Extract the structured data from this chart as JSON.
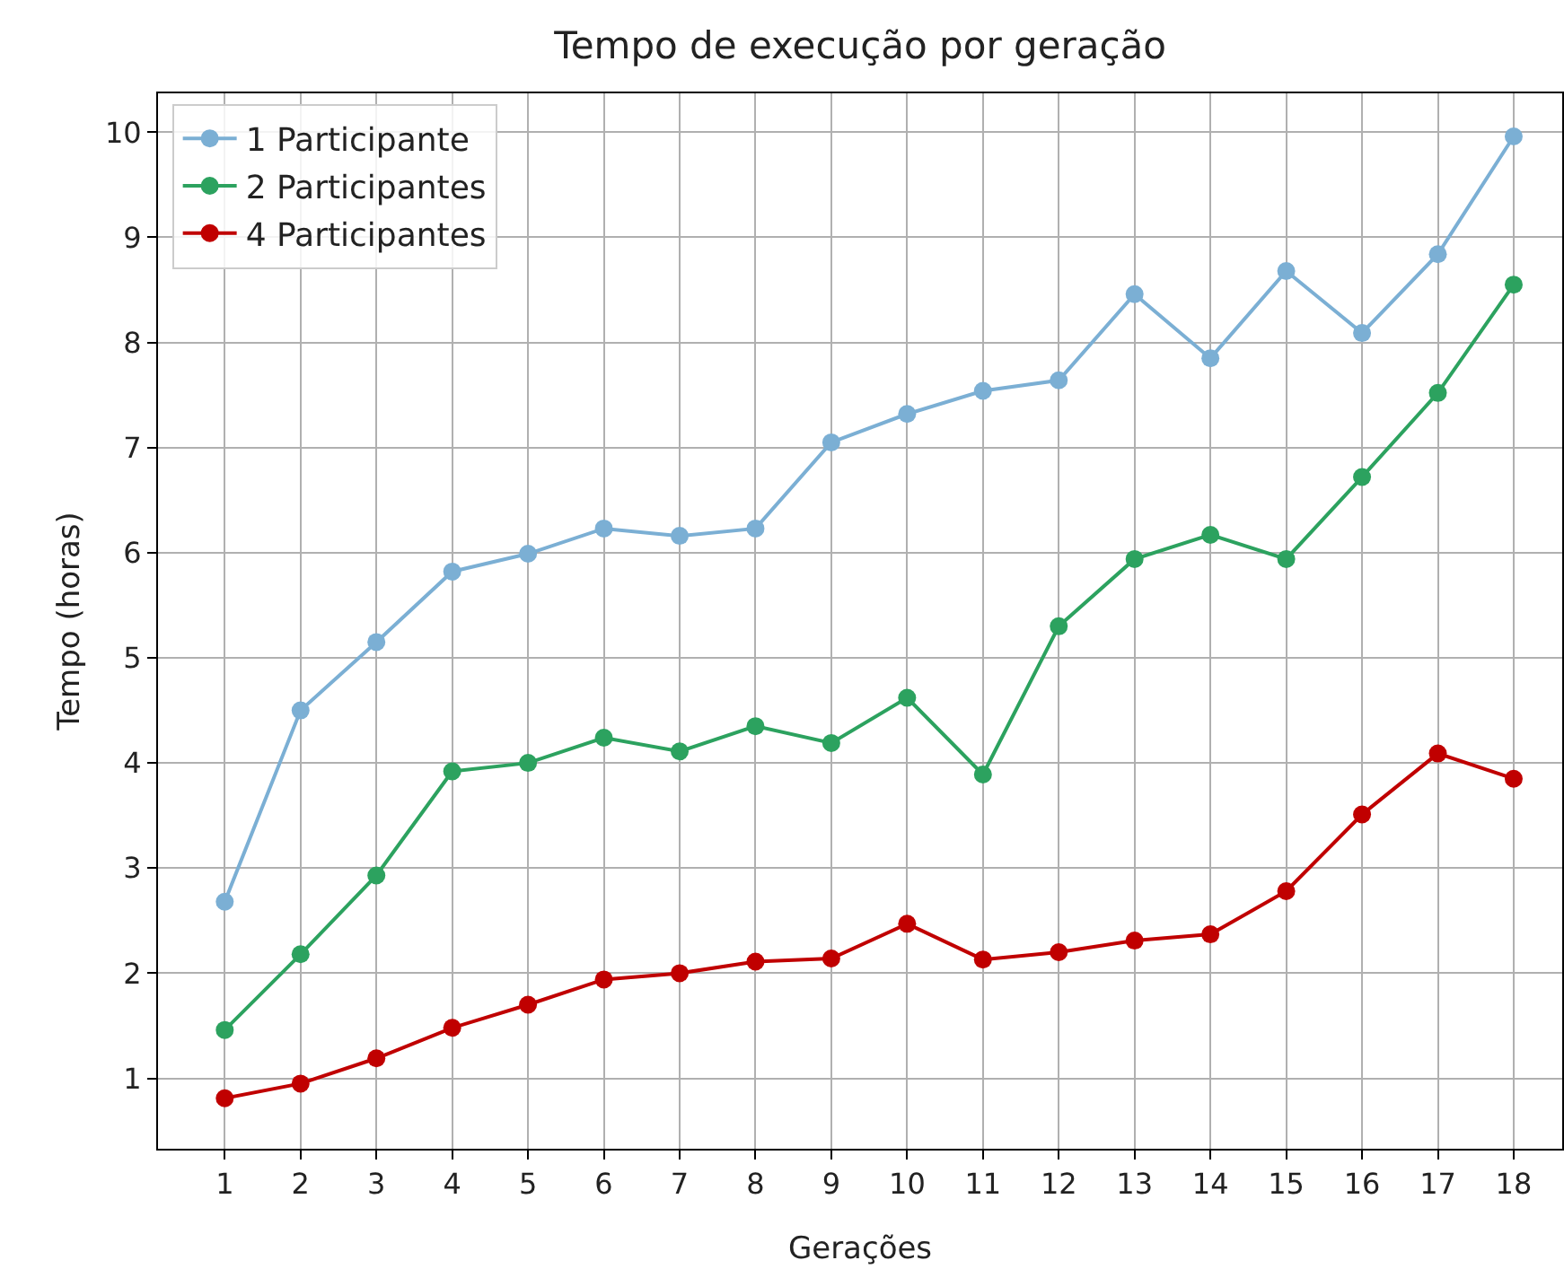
{
  "chart_data": {
    "type": "line",
    "title": "Tempo de execução por geração",
    "xlabel": "Gerações",
    "ylabel": "Tempo (horas)",
    "x": [
      1,
      2,
      3,
      4,
      5,
      6,
      7,
      8,
      9,
      10,
      11,
      12,
      13,
      14,
      15,
      16,
      17,
      18
    ],
    "xlim": [
      0.12,
      18.64
    ],
    "xticks": [
      1,
      2,
      3,
      4,
      5,
      6,
      7,
      8,
      9,
      10,
      11,
      12,
      13,
      14,
      15,
      16,
      17,
      18
    ],
    "ylim": [
      0.33,
      10.37
    ],
    "yticks": [
      1,
      2,
      3,
      4,
      5,
      6,
      7,
      8,
      9,
      10
    ],
    "grid": true,
    "legend": "top left",
    "marker": "circle",
    "line_style": "solid",
    "series": [
      {
        "name": "1 Participante",
        "color": "#7bafd4",
        "values": [
          2.68,
          4.5,
          5.15,
          5.82,
          5.99,
          6.23,
          6.16,
          6.23,
          7.05,
          7.32,
          7.54,
          7.64,
          8.46,
          7.85,
          8.68,
          8.09,
          8.84,
          9.96
        ]
      },
      {
        "name": "2 Participantes",
        "color": "#2ca25f",
        "values": [
          1.46,
          2.18,
          2.93,
          3.92,
          4.0,
          4.24,
          4.11,
          4.35,
          4.19,
          4.62,
          3.89,
          5.3,
          5.94,
          6.17,
          5.94,
          6.72,
          7.52,
          8.55
        ]
      },
      {
        "name": "4 Participantes",
        "color": "#c00000",
        "values": [
          0.81,
          0.95,
          1.19,
          1.48,
          1.7,
          1.94,
          2.0,
          2.11,
          2.14,
          2.47,
          2.13,
          2.2,
          2.31,
          2.37,
          2.78,
          3.51,
          4.09,
          3.85
        ]
      }
    ]
  }
}
